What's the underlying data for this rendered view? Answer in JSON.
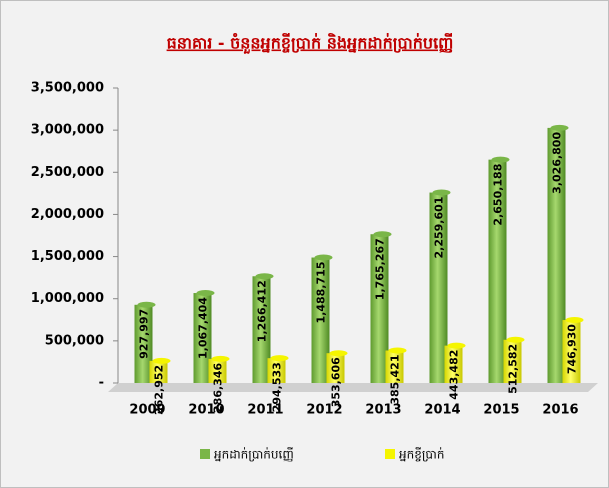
{
  "chart_data": {
    "type": "bar",
    "title": "ធនាគារ - ចំនួនអ្នកខ្ចីប្រាក់ និងអ្នកដាក់ប្រាក់បញ្ញើ",
    "categories": [
      "2009",
      "2010",
      "2011",
      "2012",
      "2013",
      "2014",
      "2015",
      "2016"
    ],
    "series": [
      {
        "name": "អ្នកដាក់ប្រាក់បញ្ញើ",
        "color": "#7ab648",
        "values": [
          927997,
          1067404,
          1266412,
          1488715,
          1765267,
          2259601,
          2650188,
          3026800
        ],
        "value_labels": [
          "927,997",
          "1,067,404",
          "1,266,412",
          "1,488,715",
          "1,765,267",
          "2,259,601",
          "2,650,188",
          "3,026,800"
        ]
      },
      {
        "name": "អ្នកខ្ចីប្រាក់",
        "color": "#f5f500",
        "values": [
          262952,
          286346,
          294533,
          353606,
          385421,
          443482,
          512582,
          746930
        ],
        "value_labels": [
          "262,952",
          "286,346",
          "294,533",
          "353,606",
          "385,421",
          "443,482",
          "512,582",
          "746,930"
        ]
      }
    ],
    "ylim": [
      0,
      3500000
    ],
    "yticks": [
      {
        "value": 0,
        "label": "-"
      },
      {
        "value": 500000,
        "label": "500,000"
      },
      {
        "value": 1000000,
        "label": "1,000,000"
      },
      {
        "value": 1500000,
        "label": "1,500,000"
      },
      {
        "value": 2000000,
        "label": "2,000,000"
      },
      {
        "value": 2500000,
        "label": "2,500,000"
      },
      {
        "value": 3000000,
        "label": "3,000,000"
      },
      {
        "value": 3500000,
        "label": "3,500,000"
      }
    ],
    "legend": "bottom"
  }
}
